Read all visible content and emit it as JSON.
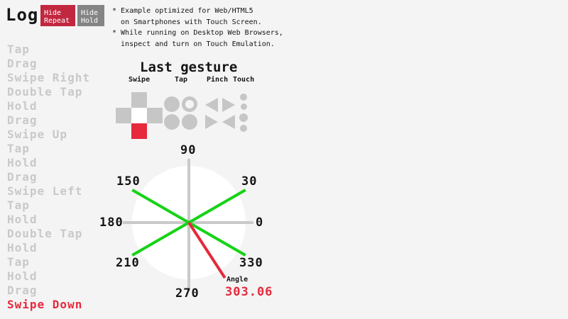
{
  "theme": {
    "bg": "#f4f4f4",
    "ink": "#151515",
    "log_gray": "#c9c9c9",
    "red": "#e6293b",
    "button_red": "#c1273f",
    "button_gray": "#848484",
    "icon_gray": "#c6c6c6",
    "green": "#16d316",
    "axis_gray": "#c9c9c9",
    "circle_white": "#ffffff"
  },
  "header": {
    "title": "Log",
    "hide_repeat_button": {
      "line1": "Hide",
      "line2": "Repeat"
    },
    "hide_hold_button": {
      "line1": "Hide",
      "line2": "Hold"
    }
  },
  "notes": {
    "lines": [
      "* Example optimized for Web/HTML5",
      "  on Smartphones with Touch Screen.",
      "* While running on Desktop Web Browsers,",
      "  inspect and turn on Touch Emulation."
    ]
  },
  "log": {
    "items": [
      {
        "label": "Tap"
      },
      {
        "label": "Drag"
      },
      {
        "label": "Swipe Right"
      },
      {
        "label": "Double Tap"
      },
      {
        "label": "Hold"
      },
      {
        "label": "Drag"
      },
      {
        "label": "Swipe Up"
      },
      {
        "label": "Tap"
      },
      {
        "label": "Hold"
      },
      {
        "label": "Drag"
      },
      {
        "label": "Swipe Left"
      },
      {
        "label": "Tap"
      },
      {
        "label": "Hold"
      },
      {
        "label": "Double Tap"
      },
      {
        "label": "Hold"
      },
      {
        "label": "Tap"
      },
      {
        "label": "Hold"
      },
      {
        "label": "Drag"
      },
      {
        "label": "Swipe Down",
        "state": "active"
      }
    ]
  },
  "gesture_panel": {
    "title": "Last gesture",
    "groups": [
      {
        "label": "Swipe",
        "icon": "swipe-dpad-icon",
        "active_direction": "down"
      },
      {
        "label": "Tap",
        "icon": "tap-circles-icon"
      },
      {
        "label": "Pinch",
        "icon": "pinch-triangles-icon"
      },
      {
        "label": "Touch",
        "icon": "touch-dots-icon"
      }
    ]
  },
  "compass": {
    "tick_labels": {
      "n90": "90",
      "n150": "150",
      "n30": "30",
      "n180": "180",
      "n0": "0",
      "n210": "210",
      "n330": "330",
      "n270": "270"
    },
    "green_ray_angles_deg": [
      30,
      150,
      210,
      330
    ],
    "red_ray_angle_deg": 303.06,
    "angle_label": "Angle",
    "angle_value": "303.06"
  }
}
